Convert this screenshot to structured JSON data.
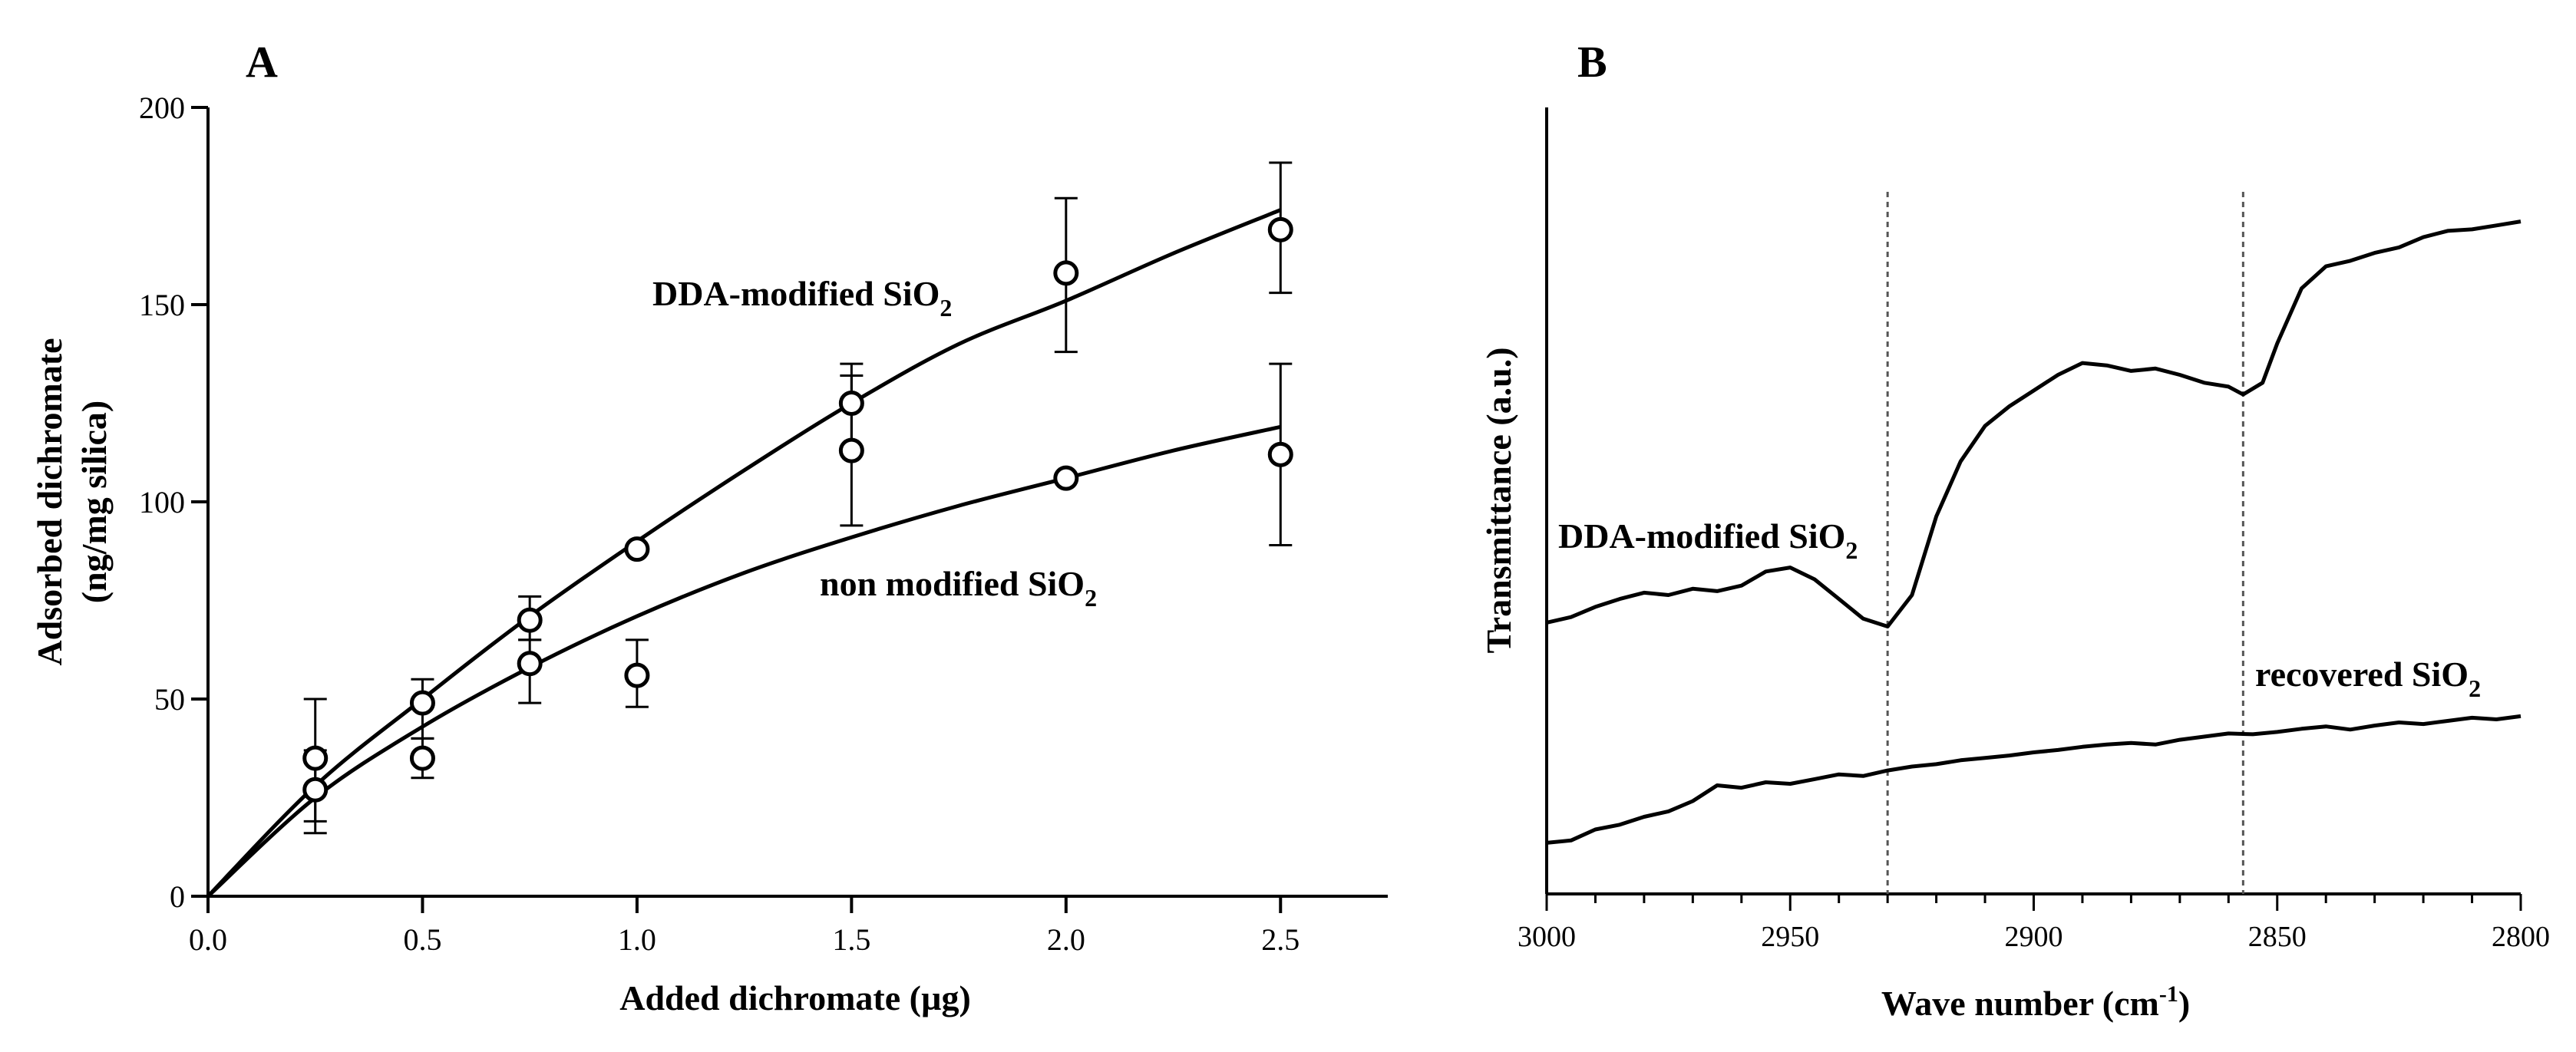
{
  "colors": {
    "ink": "#000000",
    "background": "#ffffff",
    "guide": "#555555"
  },
  "chart_data": [
    {
      "panel_label": "A",
      "type": "scatter",
      "xlabel": "Added  dichromate (µg)",
      "ylabel_line1": "Adsorbed  dichromate",
      "ylabel_line2": "(ng/mg silica)",
      "xlim": [
        0,
        2.75
      ],
      "ylim": [
        0,
        200
      ],
      "xticks": [
        0,
        0.5,
        1,
        1.5,
        2,
        2.5
      ],
      "xtick_labels": [
        "0.0",
        "0.5",
        "1.0",
        "1.5",
        "2.0",
        "2.5"
      ],
      "yticks": [
        0,
        50,
        100,
        150,
        200
      ],
      "ytick_labels": [
        "0",
        "50",
        "100",
        "150",
        "200"
      ],
      "series": [
        {
          "name": "DDA-modified SiO2",
          "label_main": "DDA-modified SiO",
          "label_sub": "2",
          "x": [
            0.25,
            0.5,
            0.75,
            1.0,
            1.5,
            2.0,
            2.5
          ],
          "y": [
            35,
            49,
            70,
            88,
            125,
            158,
            169
          ],
          "err_low": [
            16,
            40,
            65,
            88,
            113,
            138,
            153
          ],
          "err_high": [
            50,
            55,
            76,
            88,
            135,
            177,
            186
          ],
          "fit_x": [
            0,
            0.25,
            0.5,
            0.75,
            1.0,
            1.25,
            1.5,
            1.75,
            2.0,
            2.25,
            2.5
          ],
          "fit_y": [
            0,
            28,
            50,
            71,
            90,
            108,
            125,
            140,
            151,
            163,
            174
          ]
        },
        {
          "name": "non modified SiO2",
          "label_main": "non modified SiO",
          "label_sub": "2",
          "x": [
            0.25,
            0.5,
            0.75,
            1.0,
            1.5,
            2.0,
            2.5
          ],
          "y": [
            27,
            35,
            59,
            56,
            113,
            106,
            112
          ],
          "err_low": [
            19,
            30,
            49,
            48,
            94,
            106,
            89
          ],
          "err_high": [
            37,
            40,
            65,
            65,
            132,
            106,
            135
          ],
          "fit_x": [
            0,
            0.25,
            0.5,
            0.75,
            1.0,
            1.25,
            1.5,
            1.75,
            2.0,
            2.25,
            2.5
          ],
          "fit_y": [
            0,
            25,
            43,
            58,
            71,
            82,
            91,
            99,
            106,
            113,
            119
          ]
        }
      ]
    },
    {
      "panel_label": "B",
      "type": "line",
      "xlabel_main": "Wave number (cm",
      "xlabel_sup": "-1",
      "xlabel_end": ")",
      "ylabel": "Transmittance (a.u.)",
      "xlim": [
        3000,
        2800
      ],
      "ylim": [
        0,
        100
      ],
      "xticks": [
        3000,
        2950,
        2900,
        2850,
        2800
      ],
      "xtick_labels": [
        "3000",
        "2950",
        "2900",
        "2850",
        "2800"
      ],
      "guides_x": [
        2930,
        2857
      ],
      "series": [
        {
          "name": "DDA-modified SiO2",
          "label_main": "DDA-modified SiO",
          "label_sub": "2",
          "x": [
            3000,
            2995,
            2990,
            2985,
            2980,
            2975,
            2970,
            2965,
            2960,
            2955,
            2950,
            2945,
            2940,
            2935,
            2930,
            2925,
            2920,
            2915,
            2910,
            2905,
            2900,
            2895,
            2890,
            2885,
            2880,
            2875,
            2870,
            2865,
            2860,
            2857,
            2853,
            2850,
            2845,
            2840,
            2835,
            2830,
            2825,
            2820,
            2815,
            2810,
            2805,
            2800
          ],
          "y": [
            34.5,
            35.2,
            36.5,
            37.5,
            38.3,
            38.0,
            38.8,
            38.5,
            39.2,
            41.0,
            41.5,
            40.0,
            37.5,
            35.0,
            34.0,
            38.0,
            48.0,
            55.0,
            59.5,
            62.0,
            64.0,
            66.0,
            67.5,
            67.2,
            66.5,
            66.8,
            66.0,
            65.0,
            64.5,
            63.5,
            65.0,
            70.0,
            77.0,
            79.8,
            80.5,
            81.5,
            82.2,
            83.5,
            84.3,
            84.5,
            85.0,
            85.5
          ]
        },
        {
          "name": "recovered SiO2",
          "label_main": "recovered SiO",
          "label_sub": "2",
          "x": [
            3000,
            2995,
            2990,
            2985,
            2980,
            2975,
            2970,
            2965,
            2960,
            2955,
            2950,
            2945,
            2940,
            2935,
            2930,
            2925,
            2920,
            2915,
            2910,
            2905,
            2900,
            2895,
            2890,
            2885,
            2880,
            2875,
            2870,
            2865,
            2860,
            2855,
            2850,
            2845,
            2840,
            2835,
            2830,
            2825,
            2820,
            2815,
            2810,
            2805,
            2800
          ],
          "y": [
            6.5,
            6.8,
            8.2,
            8.8,
            9.8,
            10.5,
            11.8,
            13.8,
            13.5,
            14.2,
            14.0,
            14.6,
            15.2,
            15.0,
            15.7,
            16.2,
            16.5,
            17.0,
            17.3,
            17.6,
            18.0,
            18.3,
            18.7,
            19.0,
            19.2,
            19.0,
            19.6,
            20.0,
            20.4,
            20.3,
            20.6,
            21.0,
            21.3,
            20.9,
            21.4,
            21.8,
            21.6,
            22.0,
            22.4,
            22.2,
            22.6
          ]
        }
      ]
    }
  ]
}
